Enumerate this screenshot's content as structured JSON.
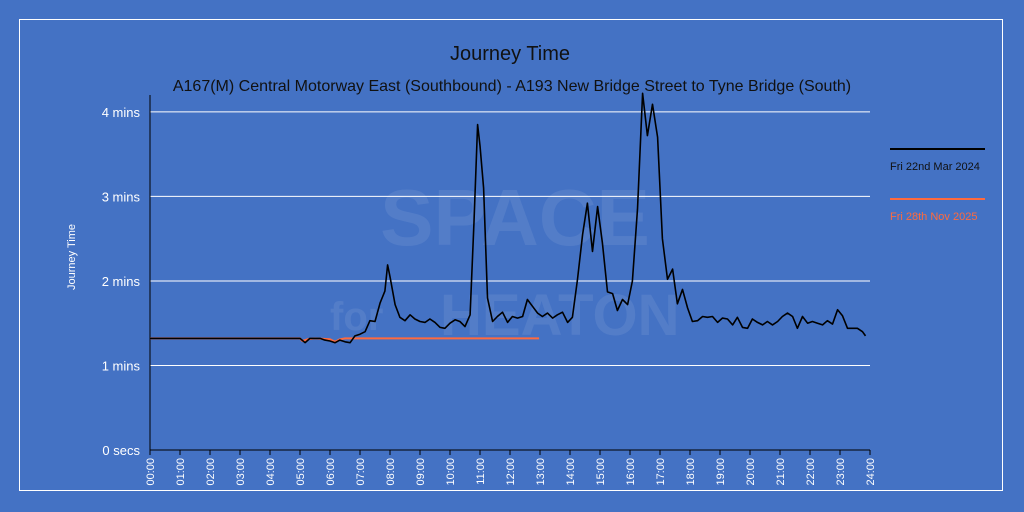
{
  "colors": {
    "background": "#4472c4",
    "series_1": "#000000",
    "series_2": "#ff6a3d",
    "grid": "#ffffff",
    "text": "#ffffff"
  },
  "watermark": {
    "line1": "SPACE",
    "line2_a": "for",
    "line2_b": "HEATON"
  },
  "chart_data": {
    "type": "line",
    "title": "Journey Time",
    "subtitle": "A167(M) Central Motorway East (Southbound) - A193 New Bridge Street to Tyne Bridge (South)",
    "xlabel": "",
    "ylabel": "Journey Time",
    "x_unit": "hours",
    "xlim": [
      0,
      24
    ],
    "ylim": [
      0,
      4.2
    ],
    "y_unit": "mins",
    "grid": true,
    "legend_position": "right",
    "x_ticks": [
      "00:00",
      "01:00",
      "02:00",
      "03:00",
      "04:00",
      "05:00",
      "06:00",
      "07:00",
      "08:00",
      "09:00",
      "10:00",
      "11:00",
      "12:00",
      "13:00",
      "14:00",
      "15:00",
      "16:00",
      "17:00",
      "18:00",
      "19:00",
      "20:00",
      "21:00",
      "22:00",
      "23:00",
      "24:00"
    ],
    "y_ticks": [
      {
        "value": 0,
        "label": "0 secs"
      },
      {
        "value": 1,
        "label": "1 mins"
      },
      {
        "value": 2,
        "label": "2 mins"
      },
      {
        "value": 3,
        "label": "3 mins"
      },
      {
        "value": 4,
        "label": "4 mins"
      }
    ],
    "series": [
      {
        "name": "Fri 22nd Mar 2024",
        "color": "#000000",
        "points": [
          [
            0,
            1.32
          ],
          [
            1,
            1.32
          ],
          [
            2,
            1.32
          ],
          [
            3,
            1.32
          ],
          [
            4,
            1.32
          ],
          [
            5.0,
            1.32
          ],
          [
            5.17,
            1.27
          ],
          [
            5.33,
            1.32
          ],
          [
            5.5,
            1.32
          ],
          [
            5.67,
            1.32
          ],
          [
            5.83,
            1.3
          ],
          [
            6.0,
            1.29
          ],
          [
            6.17,
            1.27
          ],
          [
            6.33,
            1.3
          ],
          [
            6.5,
            1.28
          ],
          [
            6.67,
            1.27
          ],
          [
            6.83,
            1.35
          ],
          [
            7.0,
            1.37
          ],
          [
            7.17,
            1.4
          ],
          [
            7.33,
            1.53
          ],
          [
            7.5,
            1.52
          ],
          [
            7.67,
            1.74
          ],
          [
            7.83,
            1.88
          ],
          [
            7.92,
            2.19
          ],
          [
            8.0,
            2.05
          ],
          [
            8.17,
            1.72
          ],
          [
            8.33,
            1.57
          ],
          [
            8.5,
            1.53
          ],
          [
            8.67,
            1.6
          ],
          [
            8.83,
            1.55
          ],
          [
            9.0,
            1.52
          ],
          [
            9.17,
            1.51
          ],
          [
            9.33,
            1.55
          ],
          [
            9.5,
            1.51
          ],
          [
            9.67,
            1.45
          ],
          [
            9.83,
            1.44
          ],
          [
            10.0,
            1.5
          ],
          [
            10.17,
            1.54
          ],
          [
            10.33,
            1.52
          ],
          [
            10.5,
            1.46
          ],
          [
            10.67,
            1.6
          ],
          [
            10.8,
            2.7
          ],
          [
            10.92,
            3.85
          ],
          [
            11.0,
            3.6
          ],
          [
            11.12,
            3.1
          ],
          [
            11.25,
            1.8
          ],
          [
            11.42,
            1.52
          ],
          [
            11.58,
            1.58
          ],
          [
            11.75,
            1.63
          ],
          [
            11.92,
            1.51
          ],
          [
            12.08,
            1.58
          ],
          [
            12.25,
            1.56
          ],
          [
            12.42,
            1.58
          ],
          [
            12.58,
            1.78
          ],
          [
            12.75,
            1.7
          ],
          [
            12.92,
            1.62
          ],
          [
            13.08,
            1.58
          ],
          [
            13.25,
            1.62
          ],
          [
            13.42,
            1.56
          ],
          [
            13.58,
            1.6
          ],
          [
            13.75,
            1.63
          ],
          [
            13.92,
            1.51
          ],
          [
            14.08,
            1.57
          ],
          [
            14.25,
            2.02
          ],
          [
            14.42,
            2.55
          ],
          [
            14.58,
            2.92
          ],
          [
            14.75,
            2.35
          ],
          [
            14.92,
            2.88
          ],
          [
            15.08,
            2.45
          ],
          [
            15.25,
            1.87
          ],
          [
            15.42,
            1.85
          ],
          [
            15.58,
            1.65
          ],
          [
            15.75,
            1.78
          ],
          [
            15.92,
            1.72
          ],
          [
            16.08,
            2.0
          ],
          [
            16.25,
            2.85
          ],
          [
            16.42,
            4.22
          ],
          [
            16.58,
            3.72
          ],
          [
            16.75,
            4.09
          ],
          [
            16.92,
            3.7
          ],
          [
            17.08,
            2.5
          ],
          [
            17.25,
            2.02
          ],
          [
            17.42,
            2.14
          ],
          [
            17.58,
            1.73
          ],
          [
            17.75,
            1.9
          ],
          [
            17.92,
            1.68
          ],
          [
            18.08,
            1.52
          ],
          [
            18.25,
            1.53
          ],
          [
            18.42,
            1.58
          ],
          [
            18.58,
            1.57
          ],
          [
            18.75,
            1.58
          ],
          [
            18.92,
            1.51
          ],
          [
            19.08,
            1.56
          ],
          [
            19.25,
            1.55
          ],
          [
            19.42,
            1.48
          ],
          [
            19.58,
            1.57
          ],
          [
            19.75,
            1.45
          ],
          [
            19.92,
            1.44
          ],
          [
            20.08,
            1.55
          ],
          [
            20.25,
            1.51
          ],
          [
            20.42,
            1.48
          ],
          [
            20.58,
            1.52
          ],
          [
            20.75,
            1.48
          ],
          [
            20.92,
            1.52
          ],
          [
            21.08,
            1.58
          ],
          [
            21.25,
            1.62
          ],
          [
            21.42,
            1.58
          ],
          [
            21.58,
            1.44
          ],
          [
            21.75,
            1.58
          ],
          [
            21.92,
            1.5
          ],
          [
            22.08,
            1.52
          ],
          [
            22.25,
            1.5
          ],
          [
            22.42,
            1.48
          ],
          [
            22.58,
            1.53
          ],
          [
            22.75,
            1.49
          ],
          [
            22.92,
            1.66
          ],
          [
            23.08,
            1.59
          ],
          [
            23.25,
            1.44
          ],
          [
            23.42,
            1.44
          ],
          [
            23.58,
            1.44
          ],
          [
            23.75,
            1.4
          ],
          [
            23.85,
            1.35
          ]
        ]
      },
      {
        "name": "Fri 28th Nov 2025",
        "color": "#ff6a3d",
        "points": [
          [
            0,
            1.32
          ],
          [
            5.0,
            1.32
          ],
          [
            5.08,
            1.29
          ],
          [
            5.25,
            1.31
          ],
          [
            5.5,
            1.32
          ],
          [
            6.0,
            1.31
          ],
          [
            6.17,
            1.28
          ],
          [
            6.33,
            1.31
          ],
          [
            6.5,
            1.32
          ],
          [
            7.0,
            1.32
          ],
          [
            8.0,
            1.32
          ],
          [
            9.0,
            1.32
          ],
          [
            10.0,
            1.32
          ],
          [
            11.0,
            1.32
          ],
          [
            12.0,
            1.32
          ],
          [
            12.97,
            1.32
          ]
        ]
      }
    ]
  }
}
